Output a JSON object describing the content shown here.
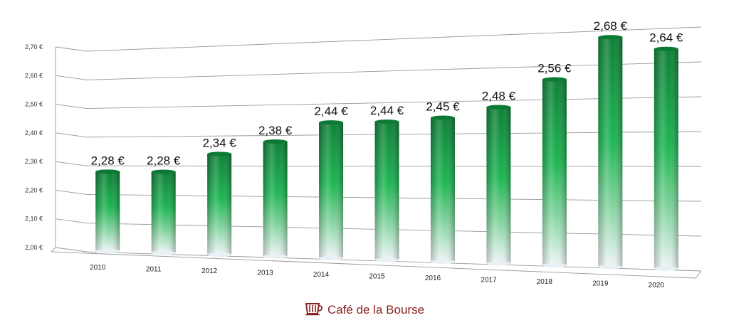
{
  "chart_data": {
    "type": "bar",
    "title": "",
    "xlabel": "",
    "ylabel": "",
    "categories": [
      "2010",
      "2011",
      "2012",
      "2013",
      "2014",
      "2015",
      "2016",
      "2017",
      "2018",
      "2019",
      "2020"
    ],
    "values": [
      2.28,
      2.28,
      2.34,
      2.38,
      2.44,
      2.44,
      2.45,
      2.48,
      2.56,
      2.68,
      2.64
    ],
    "data_labels": [
      "2,28 €",
      "2,28 €",
      "2,34 €",
      "2,38 €",
      "2,44 €",
      "2,44 €",
      "2,45 €",
      "2,48 €",
      "2,56 €",
      "2,68 €",
      "2,64 €"
    ],
    "yticks": [
      2.0,
      2.1,
      2.2,
      2.3,
      2.4,
      2.5,
      2.6,
      2.7
    ],
    "ytick_labels": [
      "2,00 €",
      "2,10 €",
      "2,20 €",
      "2,30 €",
      "2,40 €",
      "2,50 €",
      "2,60 €",
      "2,70 €"
    ],
    "ylim": [
      2.0,
      2.7
    ],
    "grid": true,
    "legend": "none",
    "style": "3d-cylinder",
    "colors": {
      "bar_top": "#0f8a3c",
      "bar_mid": "#1fbf55",
      "bar_bottom": "#f2f6f8",
      "grid": "#999999"
    }
  },
  "brand": {
    "name": "Café de la Bourse",
    "icon": "coffee-cup-icon",
    "color": "#8b2323"
  }
}
